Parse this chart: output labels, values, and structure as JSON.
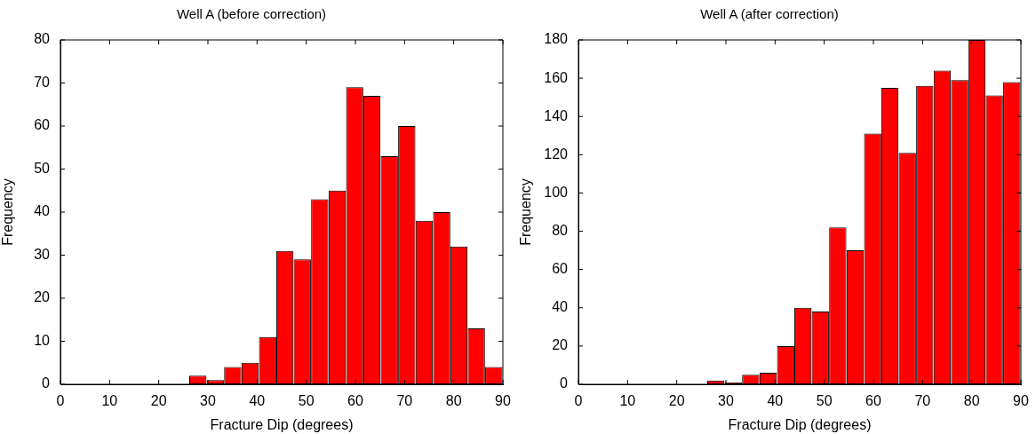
{
  "chart_data": [
    {
      "type": "histogram",
      "title": "Well A (before correction)",
      "xlabel": "Fracture Dip (degrees)",
      "ylabel": "Frequency",
      "color": "#ff0000",
      "bins": [
        26.2,
        29.7,
        33.3,
        36.8,
        40.4,
        43.9,
        47.4,
        51.0,
        54.5,
        58.1,
        61.6,
        65.1,
        68.7,
        72.2,
        75.8,
        79.3,
        82.8,
        86.4,
        89.9
      ],
      "values": [
        2,
        1,
        4,
        5,
        11,
        31,
        29,
        43,
        45,
        69,
        67,
        53,
        60,
        38,
        40,
        32,
        13,
        4
      ],
      "xlim": [
        0,
        90
      ],
      "xticks": [
        0,
        10,
        20,
        30,
        40,
        50,
        60,
        70,
        80,
        90
      ],
      "ylim": [
        0,
        80
      ],
      "yticks": [
        0,
        10,
        20,
        30,
        40,
        50,
        60,
        70,
        80
      ]
    },
    {
      "type": "histogram",
      "title": "Well A (after correction)",
      "xlabel": "Fracture Dip (degrees)",
      "ylabel": "Frequency",
      "color": "#ff0000",
      "bins": [
        26.2,
        29.7,
        33.3,
        36.8,
        40.4,
        43.9,
        47.4,
        51.0,
        54.5,
        58.1,
        61.6,
        65.1,
        68.7,
        72.2,
        75.8,
        79.3,
        82.8,
        86.4,
        89.9
      ],
      "values": [
        2,
        1,
        5,
        6,
        20,
        40,
        38,
        82,
        70,
        131,
        155,
        121,
        156,
        164,
        159,
        180,
        151,
        158
      ],
      "xlim": [
        0,
        90
      ],
      "xticks": [
        0,
        10,
        20,
        30,
        40,
        50,
        60,
        70,
        80,
        90
      ],
      "ylim": [
        0,
        180
      ],
      "yticks": [
        0,
        20,
        40,
        60,
        80,
        100,
        120,
        140,
        160,
        180
      ]
    }
  ]
}
